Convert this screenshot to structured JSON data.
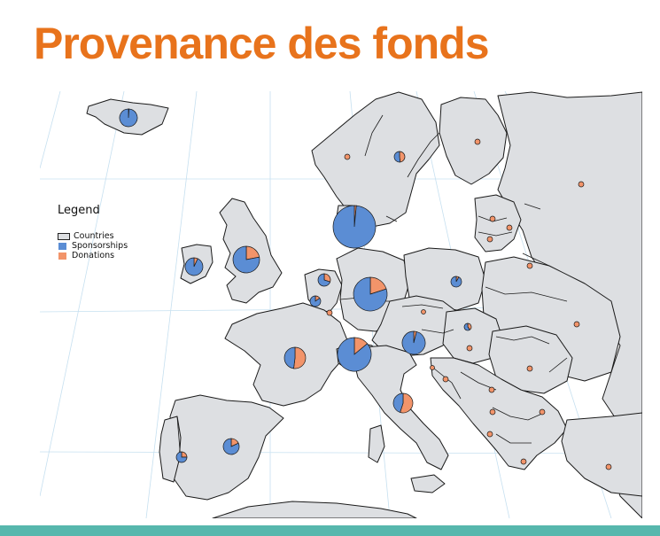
{
  "title": "Provenance des fonds",
  "colors": {
    "title": "#E8731C",
    "land": "#DDDFE2",
    "border": "#1A1A1A",
    "graticule": "#C6E0F0",
    "sponsorships": "#5B8DD4",
    "donations": "#F2946A",
    "footer": "#57B7AD"
  },
  "legend": {
    "title": "Legend",
    "items": [
      {
        "label": "Countries",
        "key": "countries"
      },
      {
        "label": "Sponsorships",
        "key": "sponsorships"
      },
      {
        "label": "Donations",
        "key": "donations"
      }
    ]
  },
  "map_data": {
    "type": "pie-map",
    "series": [
      "Sponsorships",
      "Donations"
    ],
    "regions": [
      {
        "country": "Iceland",
        "sponsorship_share": 0.99
      },
      {
        "country": "Ireland",
        "sponsorship_share": 0.93
      },
      {
        "country": "United Kingdom",
        "sponsorship_share": 0.78
      },
      {
        "country": "Netherlands",
        "sponsorship_share": 0.7
      },
      {
        "country": "Belgium",
        "sponsorship_share": 0.85
      },
      {
        "country": "Luxembourg",
        "sponsorship_share": 0.0
      },
      {
        "country": "France",
        "sponsorship_share": 0.48
      },
      {
        "country": "Switzerland",
        "sponsorship_share": 0.86
      },
      {
        "country": "Germany",
        "sponsorship_share": 0.8
      },
      {
        "country": "Denmark",
        "sponsorship_share": 0.985
      },
      {
        "country": "Norway",
        "sponsorship_share": 0.0
      },
      {
        "country": "Sweden",
        "sponsorship_share": 0.52
      },
      {
        "country": "Finland",
        "sponsorship_share": 0.0
      },
      {
        "country": "Poland",
        "sponsorship_share": 0.92
      },
      {
        "country": "Austria",
        "sponsorship_share": 0.96
      },
      {
        "country": "Czechia",
        "sponsorship_share": 0.0
      },
      {
        "country": "Slovakia",
        "sponsorship_share": 0.6
      },
      {
        "country": "Hungary",
        "sponsorship_share": 0.0
      },
      {
        "country": "Slovenia",
        "sponsorship_share": 0.0
      },
      {
        "country": "Croatia",
        "sponsorship_share": 0.0
      },
      {
        "country": "Italy",
        "sponsorship_share": 0.45
      },
      {
        "country": "Spain",
        "sponsorship_share": 0.82
      },
      {
        "country": "Portugal",
        "sponsorship_share": 0.75
      },
      {
        "country": "Estonia",
        "sponsorship_share": 0.0
      },
      {
        "country": "Latvia",
        "sponsorship_share": 0.0
      },
      {
        "country": "Lithuania",
        "sponsorship_share": 0.0
      },
      {
        "country": "Russia",
        "sponsorship_share": 0.0
      },
      {
        "country": "Belarus",
        "sponsorship_share": 0.0
      },
      {
        "country": "Ukraine",
        "sponsorship_share": 0.0
      },
      {
        "country": "Romania",
        "sponsorship_share": 0.0
      },
      {
        "country": "Serbia",
        "sponsorship_share": 0.0
      },
      {
        "country": "Bosnia and Herzegovina",
        "sponsorship_share": 0.0
      },
      {
        "country": "Montenegro",
        "sponsorship_share": 0.0
      },
      {
        "country": "North Macedonia",
        "sponsorship_share": 0.0
      },
      {
        "country": "Bulgaria",
        "sponsorship_share": 0.0
      },
      {
        "country": "Turkey",
        "sponsorship_share": 0.0
      }
    ]
  }
}
